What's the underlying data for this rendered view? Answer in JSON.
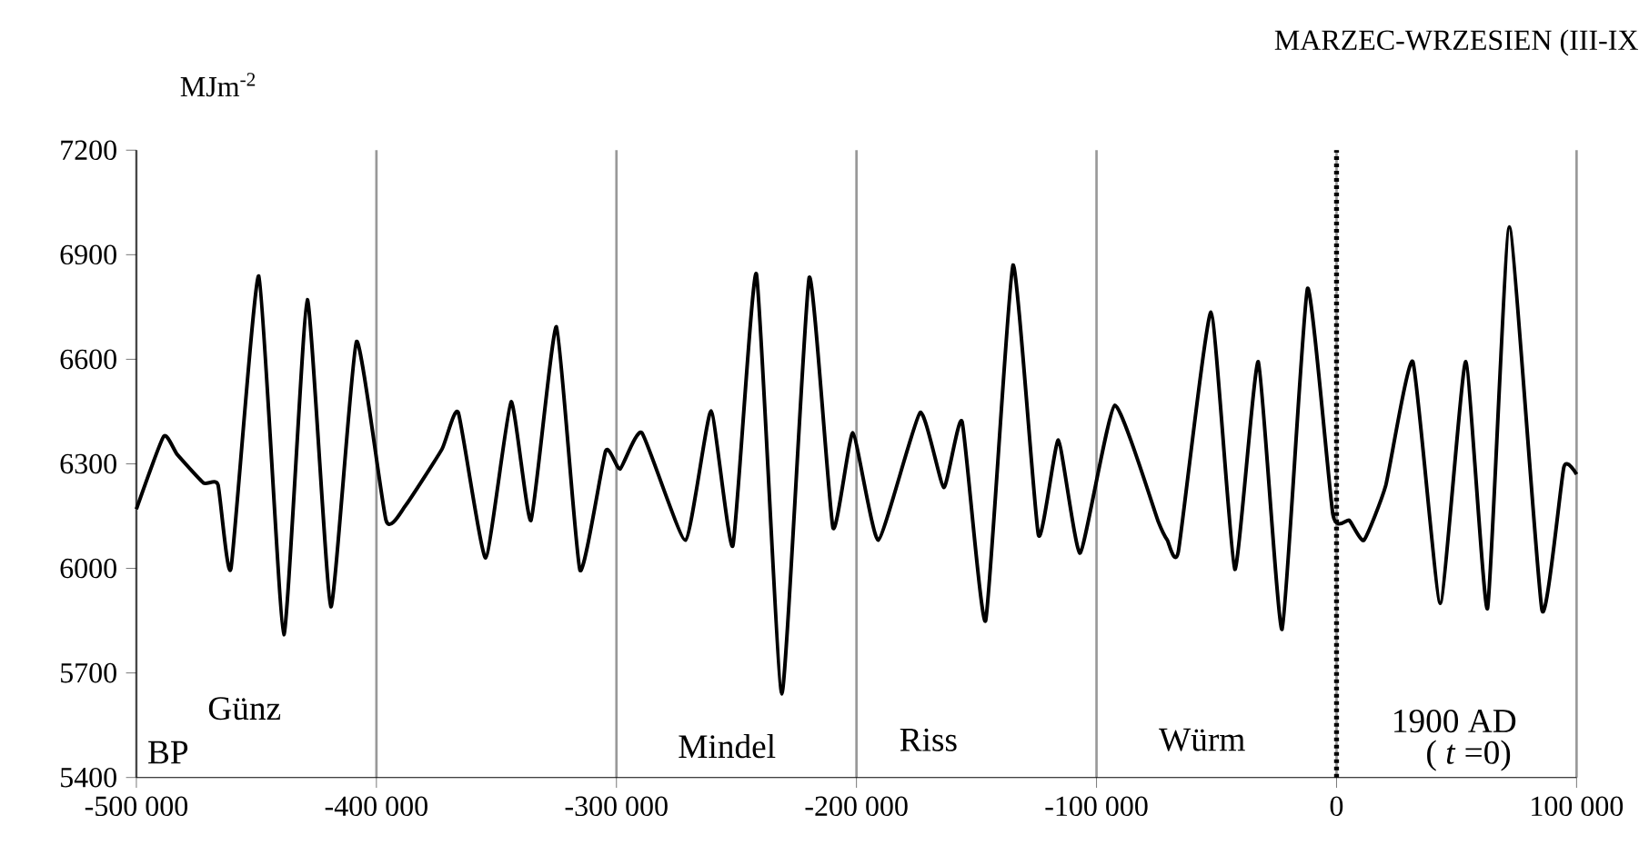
{
  "chart_data": {
    "type": "line",
    "title": "MARZEC-WRZESIEN (III-IX",
    "ylabel": "MJm$^{-2}$",
    "x": [
      -500000,
      -488600,
      -483000,
      -472000,
      -466000,
      -460600,
      -449000,
      -438600,
      -428800,
      -419000,
      -408300,
      -396000,
      -387900,
      -372700,
      -365900,
      -354500,
      -343900,
      -335600,
      -325000,
      -315200,
      -304500,
      -298500,
      -289400,
      -271200,
      -260600,
      -251500,
      -241700,
      -231100,
      -219700,
      -209800,
      -201500,
      -190900,
      -173500,
      -163600,
      -156000,
      -146200,
      -134800,
      -124200,
      -115900,
      -106800,
      -92400,
      -74200,
      -70500,
      -65900,
      -52300,
      -42400,
      -32600,
      -22700,
      -12100,
      -1500,
      5300,
      11400,
      20500,
      31800,
      43200,
      53800,
      62900,
      72000,
      85600,
      94700,
      100000
    ],
    "series": [
      {
        "color": "#000000",
        "values": [
          6170,
          6379,
          6327,
          6245,
          6240,
          6000,
          6839,
          5810,
          6771,
          5890,
          6651,
          6138,
          6180,
          6342,
          6447,
          6030,
          6478,
          6138,
          6693,
          5995,
          6337,
          6285,
          6389,
          6081,
          6452,
          6065,
          6845,
          5640,
          6834,
          6117,
          6389,
          6081,
          6447,
          6232,
          6421,
          5850,
          6870,
          6096,
          6368,
          6044,
          6468,
          6133,
          6081,
          6049,
          6735,
          5997,
          6593,
          5825,
          6803,
          6154,
          6138,
          6081,
          6238,
          6593,
          5900,
          6593,
          5885,
          6980,
          5880,
          6290,
          6270
        ]
      }
    ],
    "xlim": [
      -500000,
      100000
    ],
    "ylim": [
      5400,
      7200
    ],
    "xticks": [
      {
        "value": -500000,
        "label": "-500 000"
      },
      {
        "value": -400000,
        "label": "-400 000"
      },
      {
        "value": -300000,
        "label": "-300 000"
      },
      {
        "value": -200000,
        "label": "-200 000"
      },
      {
        "value": -100000,
        "label": "-100 000"
      },
      0,
      {
        "value": 100000,
        "label": "100 000"
      }
    ],
    "yticks": [
      5400,
      5700,
      6000,
      6300,
      6600,
      6900,
      7200
    ],
    "grid": "x",
    "marker": "none",
    "line_style": "solid",
    "ref_lines": [
      {
        "axis": "x",
        "value": 0,
        "color": "#000000",
        "line_style": "dotted"
      }
    ],
    "annotations": [
      "BP",
      "Günz",
      "Mindel",
      "Riss",
      "Würm",
      "1900 AD",
      "( *t* =0)"
    ]
  }
}
